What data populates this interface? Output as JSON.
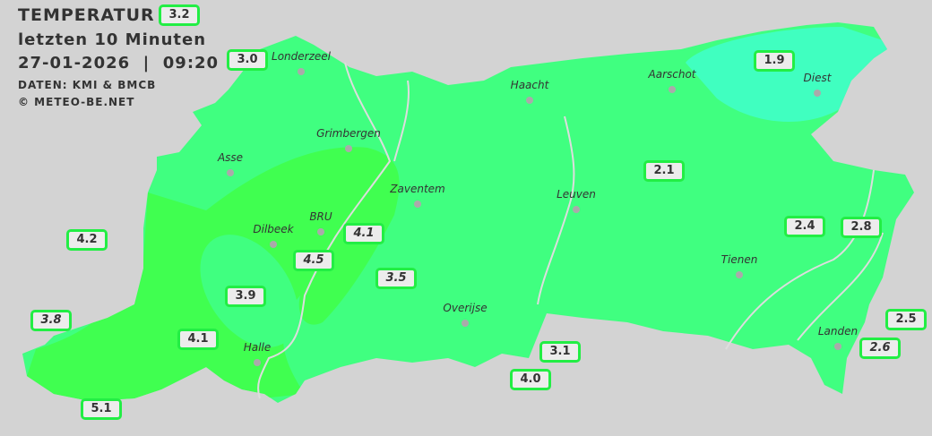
{
  "header": {
    "title": "TEMPERATUR",
    "subtitle": "letzten 10 Minuten",
    "datetime": "27-01-2026  |  09:20",
    "source": "DATEN: KMI & BMCB",
    "copyright": "© METEO-BE.NET"
  },
  "colors": {
    "background": "#d3d3d3",
    "zone_base": "#40ff80",
    "zone_warm": "#40ff50",
    "zone_cool": "#40ffc0",
    "label_border": "#22ee44"
  },
  "cities": [
    {
      "name": "Londerzeel"
    },
    {
      "name": "Haacht"
    },
    {
      "name": "Aarschot"
    },
    {
      "name": "Diest"
    },
    {
      "name": "Grimbergen"
    },
    {
      "name": "Asse"
    },
    {
      "name": "Zaventem"
    },
    {
      "name": "Leuven"
    },
    {
      "name": "Dilbeek"
    },
    {
      "name": "BRU"
    },
    {
      "name": "Tienen"
    },
    {
      "name": "Overijse"
    },
    {
      "name": "Halle"
    },
    {
      "name": "Landen"
    }
  ],
  "readings": [
    {
      "value": "3.2",
      "italic": false
    },
    {
      "value": "3.0",
      "italic": false
    },
    {
      "value": "1.9",
      "italic": false
    },
    {
      "value": "2.1",
      "italic": false
    },
    {
      "value": "4.2",
      "italic": false
    },
    {
      "value": "4.5",
      "italic": true
    },
    {
      "value": "4.1",
      "italic": true
    },
    {
      "value": "3.5",
      "italic": true
    },
    {
      "value": "3.9",
      "italic": false
    },
    {
      "value": "3.8",
      "italic": true
    },
    {
      "value": "4.1",
      "italic": false
    },
    {
      "value": "3.1",
      "italic": false
    },
    {
      "value": "4.0",
      "italic": false
    },
    {
      "value": "5.1",
      "italic": false
    },
    {
      "value": "2.4",
      "italic": false
    },
    {
      "value": "2.8",
      "italic": false
    },
    {
      "value": "2.5",
      "italic": false
    },
    {
      "value": "2.6",
      "italic": true
    }
  ]
}
